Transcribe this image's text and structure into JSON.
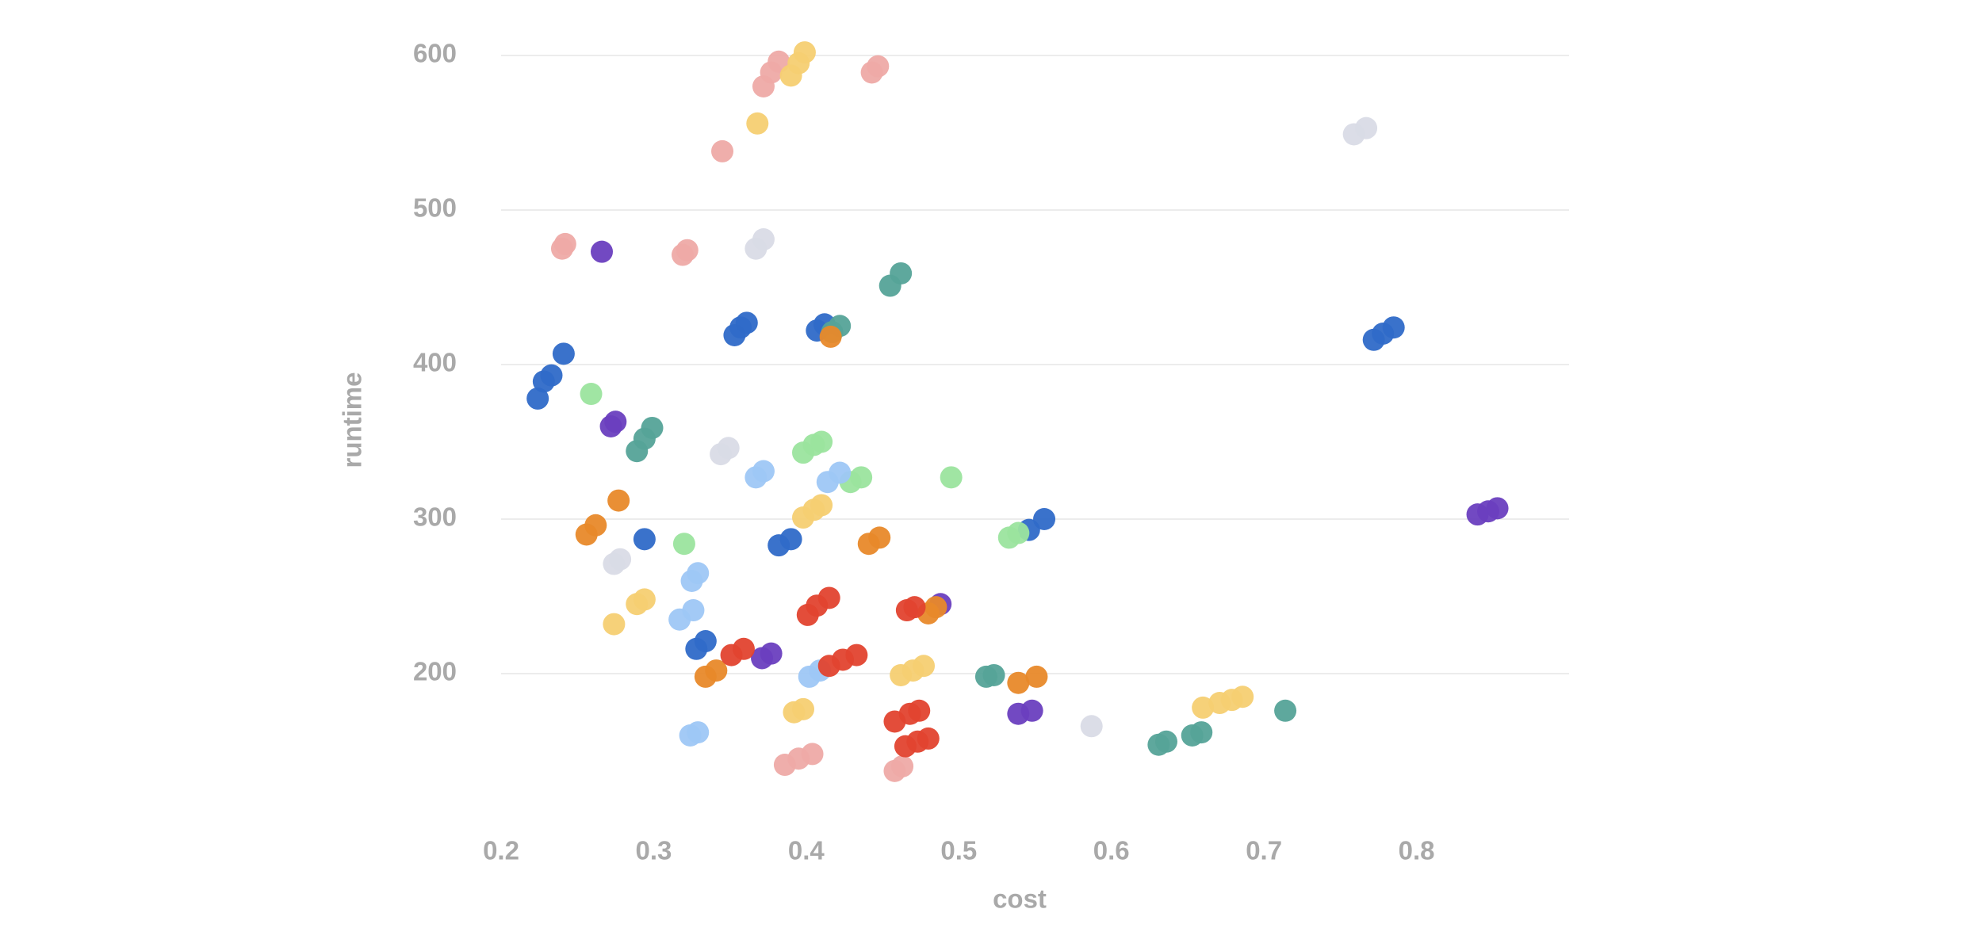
{
  "chart_data": {
    "type": "scatter",
    "x_label": "cost",
    "y_label": "runtime",
    "xlim": [
      0.2,
      0.9
    ],
    "ylim": [
      100,
      620
    ],
    "xticks": [
      0.2,
      0.3,
      0.4,
      0.5,
      0.6,
      0.7,
      0.8
    ],
    "yticks": [
      200,
      300,
      400,
      500,
      600
    ],
    "grid": true,
    "series": [
      {
        "color": "#eeaaa6",
        "x": [
          0.24,
          0.242,
          0.319,
          0.322,
          0.345,
          0.372,
          0.377,
          0.382,
          0.443,
          0.447,
          0.386,
          0.395,
          0.404,
          0.458,
          0.463
        ],
        "values": [
          475,
          478,
          471,
          474,
          538,
          580,
          589,
          596,
          589,
          593,
          141,
          145,
          148,
          137,
          140
        ]
      },
      {
        "color": "#f5cf72",
        "x": [
          0.39,
          0.395,
          0.399,
          0.368,
          0.398,
          0.405,
          0.41,
          0.274,
          0.289,
          0.294,
          0.392,
          0.398,
          0.462,
          0.47,
          0.477,
          0.66,
          0.671,
          0.679,
          0.686
        ],
        "values": [
          587,
          595,
          602,
          556,
          301,
          306,
          309,
          232,
          245,
          248,
          175,
          177,
          199,
          202,
          205,
          178,
          181,
          183,
          185
        ]
      },
      {
        "color": "#d9dbe6",
        "x": [
          0.367,
          0.372,
          0.344,
          0.349,
          0.274,
          0.278,
          0.587,
          0.759,
          0.767
        ],
        "values": [
          475,
          481,
          342,
          346,
          271,
          274,
          166,
          549,
          553
        ]
      },
      {
        "color": "#6a3fbf",
        "x": [
          0.266,
          0.272,
          0.275,
          0.371,
          0.377,
          0.488,
          0.539,
          0.548,
          0.84,
          0.847,
          0.853
        ],
        "values": [
          473,
          360,
          363,
          210,
          213,
          245,
          174,
          176,
          303,
          305,
          307
        ]
      },
      {
        "color": "#2f6ac8",
        "x": [
          0.224,
          0.228,
          0.233,
          0.241,
          0.353,
          0.357,
          0.361,
          0.407,
          0.412,
          0.294,
          0.382,
          0.39,
          0.328,
          0.334,
          0.546,
          0.556,
          0.772,
          0.778,
          0.785
        ],
        "values": [
          378,
          389,
          393,
          407,
          419,
          424,
          427,
          422,
          426,
          287,
          283,
          287,
          216,
          221,
          293,
          300,
          416,
          420,
          424
        ]
      },
      {
        "color": "#55a398",
        "x": [
          0.455,
          0.462,
          0.417,
          0.422,
          0.289,
          0.294,
          0.299,
          0.518,
          0.523,
          0.631,
          0.636,
          0.653,
          0.659,
          0.714
        ],
        "values": [
          451,
          459,
          421,
          425,
          344,
          352,
          359,
          198,
          199,
          154,
          156,
          160,
          162,
          176
        ]
      },
      {
        "color": "#9be49e",
        "x": [
          0.259,
          0.398,
          0.405,
          0.41,
          0.429,
          0.436,
          0.495,
          0.32,
          0.533,
          0.539
        ],
        "values": [
          381,
          343,
          348,
          350,
          324,
          327,
          327,
          284,
          288,
          291
        ]
      },
      {
        "color": "#9ec7f5",
        "x": [
          0.367,
          0.372,
          0.414,
          0.422,
          0.325,
          0.329,
          0.317,
          0.326,
          0.402,
          0.409,
          0.324,
          0.329
        ],
        "values": [
          327,
          331,
          324,
          330,
          260,
          265,
          235,
          241,
          198,
          202,
          160,
          162
        ]
      },
      {
        "color": "#e8892a",
        "x": [
          0.277,
          0.256,
          0.262,
          0.441,
          0.448,
          0.334,
          0.341,
          0.416,
          0.48,
          0.485,
          0.539,
          0.551
        ],
        "values": [
          312,
          290,
          296,
          284,
          288,
          198,
          202,
          418,
          239,
          243,
          194,
          198
        ]
      },
      {
        "color": "#e2432f",
        "x": [
          0.401,
          0.407,
          0.415,
          0.466,
          0.471,
          0.351,
          0.359,
          0.415,
          0.424,
          0.433,
          0.458,
          0.468,
          0.474,
          0.465,
          0.473,
          0.48
        ],
        "values": [
          238,
          244,
          249,
          241,
          243,
          212,
          216,
          205,
          209,
          212,
          169,
          174,
          176,
          153,
          156,
          158
        ]
      }
    ]
  }
}
